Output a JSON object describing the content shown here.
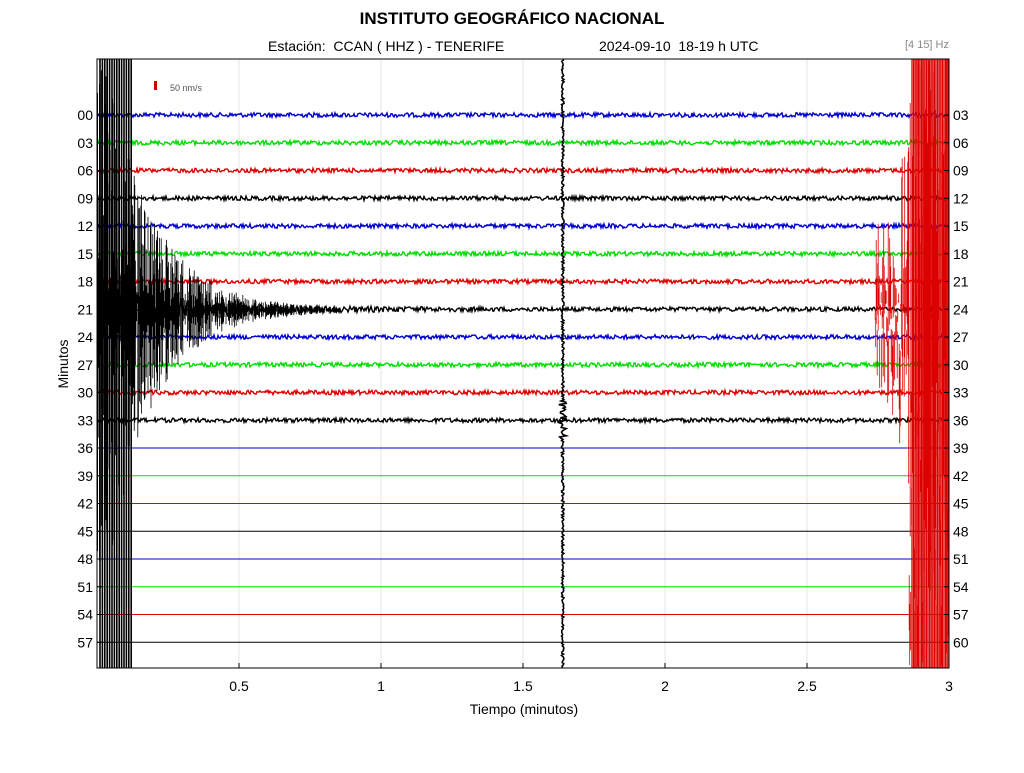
{
  "header": {
    "title": "INSTITUTO GEOGRÁFICO NACIONAL",
    "station": "Estación:  CCAN ( HHZ ) - TENERIFE",
    "datetime": "2024-09-10  18-19 h UTC",
    "filter": "[4 15] Hz"
  },
  "scale": {
    "label": "50 nm/s",
    "color": "#cc0000"
  },
  "colors": {
    "blue": "#0000cc",
    "green": "#00dd00",
    "red": "#dd0000",
    "black": "#000000"
  },
  "chart_data": {
    "type": "line",
    "title": "INSTITUTO GEOGRÁFICO NACIONAL",
    "xlabel": "Tiempo (minutos)",
    "ylabel": "Minutos",
    "xlim": [
      0,
      3
    ],
    "x_ticks": [
      "0.5",
      "1",
      "1.5",
      "2",
      "2.5",
      "3"
    ],
    "x_tick_values": [
      0.5,
      1,
      1.5,
      2,
      2.5,
      3
    ],
    "left_ticks": [
      "00",
      "03",
      "06",
      "09",
      "12",
      "15",
      "18",
      "21",
      "24",
      "27",
      "30",
      "33",
      "36",
      "39",
      "42",
      "45",
      "48",
      "51",
      "54",
      "57"
    ],
    "right_ticks": [
      "03",
      "06",
      "09",
      "12",
      "15",
      "18",
      "21",
      "24",
      "27",
      "30",
      "33",
      "36",
      "39",
      "42",
      "45",
      "48",
      "51",
      "54",
      "57",
      "60"
    ],
    "trace_colors": [
      "blue",
      "green",
      "red",
      "black"
    ],
    "recorded_until_row_minute": 33,
    "events": [
      {
        "row_minute": 0,
        "t_start": 0.0,
        "t_end": 0.55,
        "color": "black",
        "note": "large event coda spanning rows 00-57"
      },
      {
        "row_minute": 21,
        "t_start": 0.0,
        "t_end": 1.35,
        "color": "black",
        "note": "decaying coda"
      },
      {
        "row_minute": 33,
        "t_start": 1.63,
        "t_end": 1.65,
        "color": "black",
        "note": "vertical spike"
      },
      {
        "row_minute": 18,
        "t_start": 2.74,
        "t_end": 3.0,
        "color": "red",
        "note": "large event onset"
      }
    ]
  }
}
